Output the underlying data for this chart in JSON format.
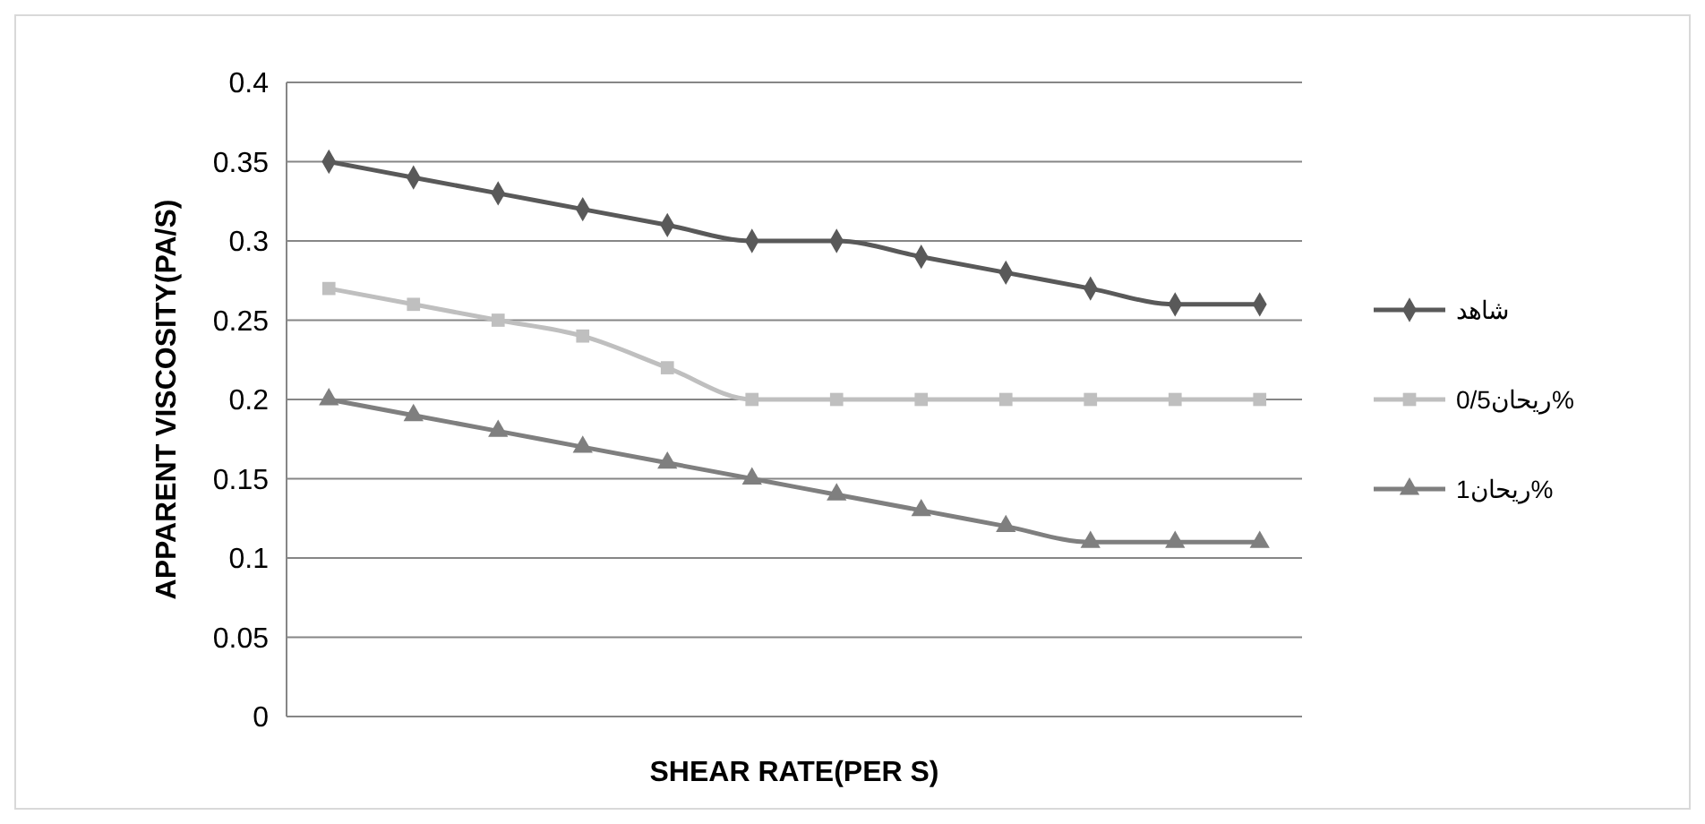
{
  "chart_data": {
    "type": "line",
    "xlabel": "SHEAR RATE(PER S)",
    "ylabel": "APPARENT VISCOSITY(PA/S)",
    "categories": [
      null,
      null,
      null,
      null,
      null,
      null,
      null,
      null,
      null,
      null,
      null,
      null
    ],
    "ylim": [
      0,
      0.4
    ],
    "yticks": [
      0,
      0.05,
      0.1,
      0.15,
      0.2,
      0.25,
      0.3,
      0.35,
      0.4
    ],
    "grid": "y",
    "legend": "right",
    "series": [
      {
        "name": "شاهد",
        "color": "#595959",
        "marker": "diamond",
        "values": [
          0.35,
          0.34,
          0.33,
          0.32,
          0.31,
          0.3,
          0.3,
          0.29,
          0.28,
          0.27,
          0.26,
          0.26
        ]
      },
      {
        "name": "ريحان0/5%",
        "color": "#bfbfbf",
        "marker": "square",
        "values": [
          0.27,
          0.26,
          0.25,
          0.24,
          0.22,
          0.2,
          0.2,
          0.2,
          0.2,
          0.2,
          0.2,
          0.2
        ]
      },
      {
        "name": "ريحان1%",
        "color": "#7f7f7f",
        "marker": "triangle",
        "values": [
          0.2,
          0.19,
          0.18,
          0.17,
          0.16,
          0.15,
          0.14,
          0.13,
          0.12,
          0.11,
          0.11,
          0.11
        ]
      }
    ]
  }
}
